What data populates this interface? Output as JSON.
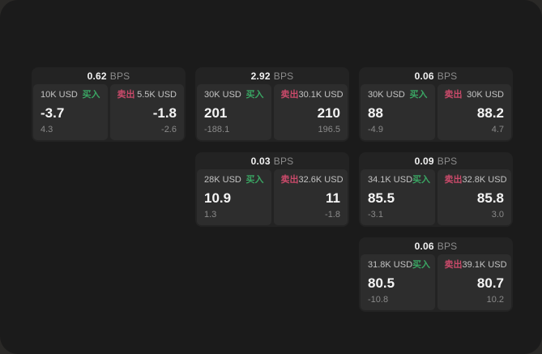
{
  "colors": {
    "buy_green": "#3aa563",
    "sell_red": "#c94a6a",
    "window_bg": "#1b1b1b",
    "card_bg": "#232323",
    "panel_bg": "#2d2d2d"
  },
  "labels": {
    "bps_unit": "BPS",
    "buy": "买入",
    "sell": "卖出"
  },
  "cards": [
    {
      "bps": "0.62",
      "buy": {
        "amount": "10K USD",
        "big": "-3.7",
        "small": "4.3"
      },
      "sell": {
        "amount": "5.5K USD",
        "big": "-1.8",
        "small": "-2.6"
      }
    },
    {
      "bps": "2.92",
      "buy": {
        "amount": "30K USD",
        "big": "201",
        "small": "-188.1"
      },
      "sell": {
        "amount": "30.1K USD",
        "big": "210",
        "small": "196.5"
      }
    },
    {
      "bps": "0.06",
      "buy": {
        "amount": "30K USD",
        "big": "88",
        "small": "-4.9"
      },
      "sell": {
        "amount": "30K USD",
        "big": "88.2",
        "small": "4.7"
      }
    },
    {
      "bps": "0.03",
      "buy": {
        "amount": "28K USD",
        "big": "10.9",
        "small": "1.3"
      },
      "sell": {
        "amount": "32.6K USD",
        "big": "11",
        "small": "-1.8"
      }
    },
    {
      "bps": "0.09",
      "buy": {
        "amount": "34.1K USD",
        "big": "85.5",
        "small": "-3.1"
      },
      "sell": {
        "amount": "32.8K USD",
        "big": "85.8",
        "small": "3.0"
      }
    },
    {
      "bps": "0.06",
      "buy": {
        "amount": "31.8K USD",
        "big": "80.5",
        "small": "-10.8"
      },
      "sell": {
        "amount": "39.1K USD",
        "big": "80.7",
        "small": "10.2"
      }
    }
  ]
}
